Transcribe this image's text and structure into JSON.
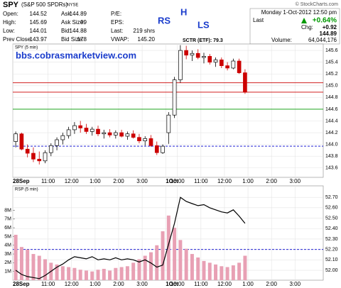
{
  "header": {
    "title": "SPY",
    "subtitle": "(S&P 500 SPDRs)",
    "exchange": "NYSE",
    "credit": "© StockCharts.com",
    "quote": [
      {
        "label": "Open:",
        "value": "144.52"
      },
      {
        "label": "High:",
        "value": "145.69"
      },
      {
        "label": "Low:",
        "value": "144.01"
      },
      {
        "label": "Prev Close:",
        "value": "143.97"
      },
      {
        "label": "Ask:",
        "value": "144.89"
      },
      {
        "label": "Ask Size:",
        "value": "99"
      },
      {
        "label": "Bid:",
        "value": "144.88"
      },
      {
        "label": "Bid Size:",
        "value": "178"
      },
      {
        "label": "P/E:"
      },
      {
        "label": "EPS:"
      },
      {
        "label": "Last:",
        "value": "219 shrs"
      },
      {
        "label": "VWAP:",
        "value": "145.20"
      }
    ],
    "box": {
      "date": "Monday 1-Oct-2012 12:50 pm",
      "last_label": "Last",
      "change_pct": "+0.64%",
      "chg_label": "Chg:",
      "chg": "+0.92",
      "last": "144.89",
      "volume_label": "Volume:",
      "volume": "64,044,176"
    }
  },
  "chart_data": [
    {
      "type": "candlestick",
      "title": "SPY (5 min)",
      "annotations": [
        "RS",
        "H",
        "LS",
        "bbs.cobrasmarketview.com",
        "SCTR (ETF): 79.3"
      ],
      "xlim": [
        0,
        13.2
      ],
      "xticks": [
        {
          "value": 0,
          "label": "28Sep"
        },
        {
          "value": 1.5,
          "label": "11:00"
        },
        {
          "value": 2.5,
          "label": "12:00"
        },
        {
          "value": 3.5,
          "label": "1:00"
        },
        {
          "value": 4.5,
          "label": "2:00"
        },
        {
          "value": 5.5,
          "label": "3:00"
        },
        {
          "value": 6.5,
          "label": "1Oct"
        },
        {
          "value": 7,
          "label": "10:00"
        },
        {
          "value": 8,
          "label": "11:00"
        },
        {
          "value": 9,
          "label": "12:00"
        },
        {
          "value": 10,
          "label": "1:00"
        },
        {
          "value": 11,
          "label": "2:00"
        },
        {
          "value": 12,
          "label": "3:00"
        }
      ],
      "ylim": [
        143.44,
        145.71
      ],
      "yticks": [
        143.6,
        143.8,
        {
          "value": 144,
          "label": "144.0"
        },
        144.2,
        144.4,
        144.6,
        144.8,
        {
          "value": 145,
          "label": "145.0"
        },
        145.2,
        145.4,
        145.6
      ],
      "grid": true,
      "up_color": "#000000",
      "down_color": "#cc0000",
      "x": [
        0,
        0.25,
        0.5,
        0.75,
        1,
        1.25,
        1.5,
        1.75,
        2,
        2.25,
        2.5,
        2.75,
        3,
        3.25,
        3.5,
        3.75,
        4,
        4.25,
        4.5,
        4.75,
        5,
        5.25,
        5.5,
        5.75,
        6,
        6.25,
        6.5,
        6.75,
        7,
        7.25,
        7.5,
        7.75,
        8,
        8.25,
        8.5,
        8.75,
        9,
        9.25,
        9.5,
        9.75
      ],
      "open": [
        144.05,
        144.18,
        143.92,
        143.85,
        143.75,
        143.72,
        143.86,
        143.98,
        144.08,
        144.15,
        144.25,
        144.32,
        144.28,
        144.22,
        144.26,
        144.18,
        144.2,
        144.16,
        144.2,
        144.14,
        144.18,
        144.12,
        144.06,
        144.1,
        143.98,
        143.86,
        144.2,
        144.5,
        145.1,
        145.6,
        145.52,
        145.55,
        145.48,
        145.5,
        145.4,
        145.44,
        145.34,
        145.3,
        145.42,
        145.22
      ],
      "high": [
        144.22,
        144.2,
        144.0,
        143.95,
        143.88,
        143.9,
        144.02,
        144.12,
        144.2,
        144.3,
        144.38,
        144.4,
        144.35,
        144.3,
        144.32,
        144.25,
        144.26,
        144.24,
        144.25,
        144.22,
        144.24,
        144.18,
        144.14,
        144.16,
        144.05,
        144.0,
        144.55,
        145.15,
        145.69,
        145.68,
        145.6,
        145.62,
        145.56,
        145.54,
        145.48,
        145.48,
        145.4,
        145.46,
        145.46,
        145.28
      ],
      "low": [
        143.95,
        143.9,
        143.78,
        143.7,
        143.66,
        143.68,
        143.8,
        143.9,
        144.0,
        144.1,
        144.18,
        144.2,
        144.18,
        144.15,
        144.14,
        144.1,
        144.12,
        144.1,
        144.12,
        144.08,
        144.1,
        144.02,
        143.98,
        143.96,
        143.82,
        143.84,
        144.01,
        144.45,
        145.05,
        145.45,
        145.42,
        145.45,
        145.38,
        145.36,
        145.32,
        145.3,
        145.26,
        145.28,
        145.2,
        144.86
      ],
      "close": [
        144.18,
        143.92,
        143.85,
        143.75,
        143.72,
        143.86,
        143.98,
        144.08,
        144.15,
        144.25,
        144.32,
        144.28,
        144.22,
        144.26,
        144.18,
        144.2,
        144.16,
        144.2,
        144.14,
        144.18,
        144.12,
        144.06,
        144.1,
        143.98,
        143.86,
        143.97,
        144.5,
        145.1,
        145.6,
        145.52,
        145.55,
        145.48,
        145.5,
        145.4,
        145.44,
        145.34,
        145.3,
        145.42,
        145.22,
        144.89
      ],
      "levels": [
        {
          "value": 145.05,
          "color": "#cc0000"
        },
        {
          "value": 144.89,
          "color": "#cc0000"
        },
        {
          "value": 144.6,
          "color": "#009900"
        },
        {
          "value": 143.97,
          "color": "#0000cc",
          "dashed": true
        }
      ]
    },
    {
      "type": "volume-line",
      "title": "RSP (5 min)",
      "xlim": [
        0,
        13.2
      ],
      "x": [
        0,
        0.25,
        0.5,
        0.75,
        1,
        1.25,
        1.5,
        1.75,
        2,
        2.25,
        2.5,
        2.75,
        3,
        3.25,
        3.5,
        3.75,
        4,
        4.25,
        4.5,
        4.75,
        5,
        5.25,
        5.5,
        5.75,
        6,
        6.25,
        6.5,
        6.75,
        7,
        7.25,
        7.5,
        7.75,
        8,
        8.25,
        8.5,
        8.75,
        9,
        9.25,
        9.5,
        9.75
      ],
      "volume_lim": [
        0,
        10800000
      ],
      "volume_ticks": [
        {
          "value": 1000000,
          "label": "1M"
        },
        {
          "value": 2000000,
          "label": "2M"
        },
        {
          "value": 3000000,
          "label": "3M"
        },
        {
          "value": 4000000,
          "label": "4M"
        },
        {
          "value": 5000000,
          "label": "5M"
        },
        {
          "value": 6000000,
          "label": "6M"
        },
        {
          "value": 7000000,
          "label": "7M"
        },
        {
          "value": 8000000,
          "label": "8M"
        }
      ],
      "volume_color": "#e8a0b4",
      "volume": [
        5200000,
        3800000,
        3500000,
        3000000,
        2800000,
        2400000,
        2000000,
        1800000,
        1600000,
        1500000,
        1400000,
        1200000,
        1100000,
        1000000,
        1200000,
        1300000,
        1100000,
        1400000,
        1500000,
        1600000,
        2000000,
        2400000,
        2800000,
        3200000,
        4000000,
        5600000,
        7400000,
        6000000,
        4600000,
        3600000,
        3000000,
        2600000,
        2200000,
        2000000,
        1800000,
        1600000,
        1500000,
        1700000,
        2000000,
        2800000
      ],
      "ylim": [
        51.905,
        52.81
      ],
      "yticks": [
        {
          "value": 52,
          "label": "52.00"
        },
        {
          "value": 52.1,
          "label": "52.10"
        },
        {
          "value": 52.2,
          "label": "52.20"
        },
        {
          "value": 52.3,
          "label": "52.30"
        },
        {
          "value": 52.4,
          "label": "52.40"
        },
        {
          "value": 52.5,
          "label": "52.50"
        },
        {
          "value": 52.6,
          "label": "52.60"
        },
        {
          "value": 52.7,
          "label": "52.70"
        }
      ],
      "line_color": "#000000",
      "values": [
        52.0,
        51.96,
        51.94,
        51.93,
        51.92,
        51.95,
        51.99,
        52.03,
        52.06,
        52.1,
        52.13,
        52.12,
        52.11,
        52.13,
        52.1,
        52.11,
        52.1,
        52.12,
        52.1,
        52.11,
        52.1,
        52.08,
        52.1,
        52.07,
        52.03,
        52.05,
        52.25,
        52.45,
        52.7,
        52.66,
        52.64,
        52.62,
        52.63,
        52.6,
        52.58,
        52.56,
        52.55,
        52.58,
        52.52,
        52.45
      ],
      "levels": [
        {
          "value": 52.2,
          "color": "#0000cc",
          "dashed": true
        }
      ]
    }
  ]
}
